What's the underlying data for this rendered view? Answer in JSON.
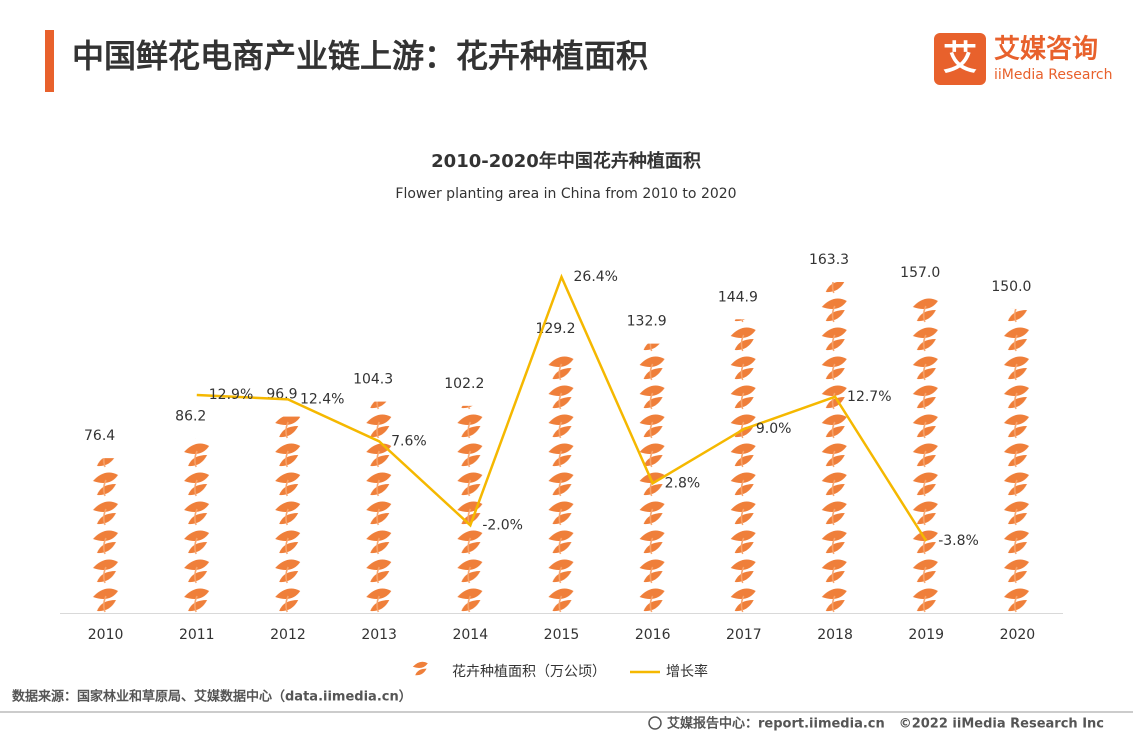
{
  "header": {
    "title": "中国鲜花电商产业链上游：花卉种植面积",
    "logo_cn": "艾媒咨询",
    "logo_en": "iiMedia Research"
  },
  "chart_data": {
    "type": "pictogram_bar_line",
    "title": "2010-2020年中国花卉种植面积",
    "subtitle": "Flower planting area in China from 2010 to 2020",
    "categories": [
      "2010",
      "2011",
      "2012",
      "2013",
      "2014",
      "2015",
      "2016",
      "2017",
      "2018",
      "2019",
      "2020"
    ],
    "series": [
      {
        "name": "花卉种植面积（万公顷）",
        "color": "#ef7f3a",
        "values": [
          76.4,
          86.2,
          96.9,
          104.3,
          102.2,
          129.2,
          132.9,
          144.9,
          163.3,
          157.0,
          150.0
        ],
        "value_labels": [
          "76.4",
          "86.2",
          "96.9",
          "104.3",
          "102.2",
          "129.2",
          "132.9",
          "144.9",
          "163.3",
          "157.0",
          "150.0"
        ]
      },
      {
        "name": "增长率",
        "color": "#f5b800",
        "axis": "y2",
        "values": [
          null,
          12.9,
          12.4,
          7.6,
          -2.0,
          26.4,
          2.8,
          9.0,
          12.7,
          -3.8,
          null
        ],
        "value_labels": [
          null,
          "12.9%",
          "12.4%",
          "7.6%",
          "-2.0%",
          "26.4%",
          "2.8%",
          "9.0%",
          "12.7%",
          "-3.8%",
          null
        ]
      }
    ],
    "legend": "bottom"
  },
  "footer": {
    "source": "数据来源：国家林业和草原局、艾媒数据中心（data.iimedia.cn）",
    "site": "艾媒报告中心：report.iimedia.cn",
    "copyright": "©2022 iiMedia Research Inc"
  }
}
